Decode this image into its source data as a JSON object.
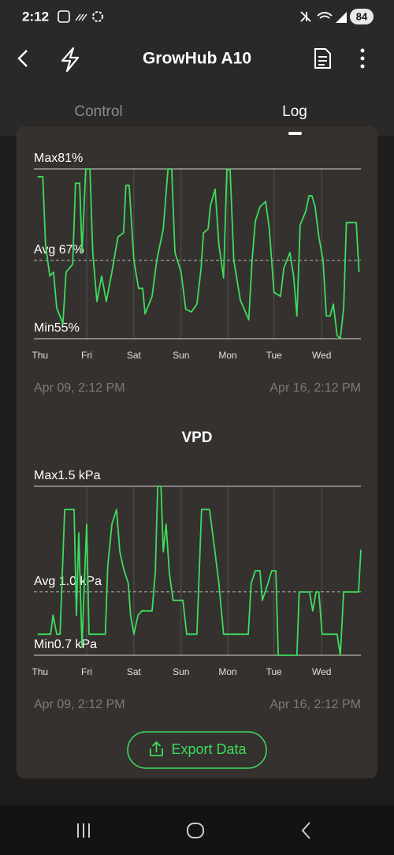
{
  "status_bar": {
    "time": "2:12",
    "battery": "84"
  },
  "header": {
    "title": "GrowHub A10"
  },
  "tabs": [
    "Control",
    "Log"
  ],
  "chart_data": [
    {
      "type": "line",
      "color": "#3ddc5e",
      "xlim": [
        0,
        7
      ],
      "xticks": [
        {
          "value": 0.13,
          "label": "Thu"
        },
        {
          "value": 1.13,
          "label": "Fri"
        },
        {
          "value": 2.14,
          "label": "Sat"
        },
        {
          "value": 3.15,
          "label": "Sun"
        },
        {
          "value": 4.15,
          "label": "Mon"
        },
        {
          "value": 5.14,
          "label": "Tue"
        },
        {
          "value": 6.16,
          "label": "Wed"
        }
      ],
      "ylim": [
        55,
        81
      ],
      "yticks": [
        {
          "value": 55,
          "label": "Min55%"
        },
        {
          "value": 67,
          "label": "Avg 67%"
        },
        {
          "value": 81,
          "label": "Max81%"
        }
      ],
      "start_label": "Apr 09, 2:12 PM",
      "end_label": "Apr 16, 2:12 PM",
      "x": [
        0.08,
        0.19,
        0.25,
        0.34,
        0.42,
        0.49,
        0.62,
        0.69,
        0.83,
        0.89,
        0.98,
        1.03,
        1.11,
        1.2,
        1.26,
        1.35,
        1.45,
        1.55,
        1.67,
        1.8,
        1.92,
        1.97,
        2.04,
        2.14,
        2.24,
        2.33,
        2.38,
        2.53,
        2.63,
        2.77,
        2.87,
        2.95,
        3.02,
        3.15,
        3.25,
        3.37,
        3.49,
        3.58,
        3.63,
        3.73,
        3.78,
        3.88,
        3.96,
        4.06,
        4.13,
        4.2,
        4.28,
        4.42,
        4.6,
        4.67,
        4.74,
        4.84,
        4.96,
        5.04,
        5.14,
        5.28,
        5.35,
        5.48,
        5.56,
        5.63,
        5.7,
        5.82,
        5.89,
        5.95,
        6.02,
        6.1,
        6.19,
        6.26,
        6.34,
        6.41,
        6.49,
        6.56,
        6.63,
        6.69,
        6.9,
        6.96
      ],
      "values": [
        79.8,
        79.8,
        69.4,
        64.6,
        65.2,
        59.7,
        57.3,
        65.2,
        66.4,
        78.8,
        78.8,
        68.2,
        81,
        81,
        68.2,
        60.7,
        64.6,
        60.7,
        65.2,
        70.6,
        71.2,
        78.5,
        78.5,
        67,
        62.7,
        62.7,
        58.8,
        61.5,
        67,
        71.8,
        81,
        81,
        68.2,
        65.2,
        59.5,
        59.1,
        60.3,
        65.8,
        71.2,
        71.8,
        75.4,
        77.9,
        69.4,
        64.3,
        80.9,
        80.9,
        67,
        60.9,
        57.9,
        67,
        73,
        75.2,
        76,
        71.8,
        62.1,
        61.5,
        65.8,
        68.2,
        64.6,
        58.5,
        72.4,
        74.5,
        76.9,
        76.9,
        75.2,
        70.6,
        67,
        58.5,
        58.5,
        60.3,
        55.5,
        55,
        59.7,
        72.8,
        72.8,
        65.2
      ]
    },
    {
      "type": "line",
      "title": "VPD",
      "color": "#3ddc5e",
      "xlim": [
        0,
        7
      ],
      "xticks": [
        {
          "value": 0.13,
          "label": "Thu"
        },
        {
          "value": 1.13,
          "label": "Fri"
        },
        {
          "value": 2.14,
          "label": "Sat"
        },
        {
          "value": 3.15,
          "label": "Sun"
        },
        {
          "value": 4.15,
          "label": "Mon"
        },
        {
          "value": 5.14,
          "label": "Tue"
        },
        {
          "value": 6.16,
          "label": "Wed"
        }
      ],
      "ylim": [
        0.7,
        1.5
      ],
      "yticks": [
        {
          "value": 0.7,
          "label": "Min0.7 kPa"
        },
        {
          "value": 1.0,
          "label": "Avg 1.0 kPa"
        },
        {
          "value": 1.5,
          "label": "Max1.5 kPa"
        }
      ],
      "start_label": "Apr 09, 2:12 PM",
      "end_label": "Apr 16, 2:12 PM",
      "x": [
        0.08,
        0.36,
        0.41,
        0.49,
        0.56,
        0.66,
        0.86,
        0.91,
        0.96,
        1.03,
        1.08,
        1.13,
        1.18,
        1.53,
        1.58,
        1.67,
        1.77,
        1.84,
        1.92,
        2.02,
        2.07,
        2.14,
        2.23,
        2.31,
        2.53,
        2.6,
        2.65,
        2.72,
        2.77,
        2.83,
        2.9,
        2.98,
        3.1,
        3.19,
        3.27,
        3.49,
        3.59,
        3.76,
        3.86,
        3.96,
        4.06,
        4.59,
        4.65,
        4.74,
        4.84,
        4.89,
        5.01,
        5.09,
        5.18,
        5.23,
        5.63,
        5.68,
        5.9,
        5.97,
        6.04,
        6.1,
        6.17,
        6.49,
        6.56,
        6.63,
        6.95,
        7.0
      ],
      "values": [
        0.8,
        0.8,
        0.89,
        0.8,
        0.8,
        1.39,
        1.39,
        0.89,
        1.28,
        0.74,
        1.04,
        1.32,
        0.8,
        0.8,
        1.12,
        1.32,
        1.39,
        1.19,
        1.11,
        1.04,
        0.89,
        0.8,
        0.89,
        0.91,
        0.91,
        1.09,
        1.5,
        1.5,
        1.19,
        1.32,
        1.09,
        0.96,
        0.96,
        0.96,
        0.8,
        0.8,
        1.39,
        1.39,
        1.22,
        1.04,
        0.8,
        0.8,
        1.04,
        1.1,
        1.1,
        0.96,
        1.04,
        1.1,
        1.1,
        0.7,
        0.7,
        1.0,
        1.0,
        0.91,
        1.0,
        1.0,
        0.8,
        0.8,
        0.7,
        1.0,
        1.0,
        1.2
      ]
    }
  ],
  "export_button": "Export Data"
}
